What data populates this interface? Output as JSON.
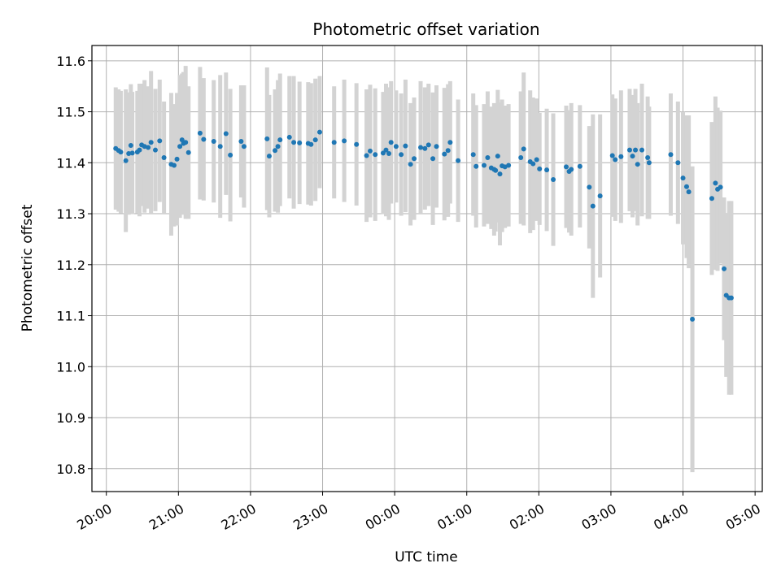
{
  "chart_data": {
    "type": "scatter",
    "title": "Photometric offset variation",
    "xlabel": "UTC time",
    "ylabel": "Photometric offset",
    "grid": true,
    "x_unit": "hours (UTC, beyond 24 = next day)",
    "xlim": [
      19.8,
      29.1
    ],
    "ylim": [
      10.755,
      11.63
    ],
    "x_ticks": [
      20,
      21,
      22,
      23,
      24,
      25,
      26,
      27,
      28,
      29
    ],
    "x_tick_labels": [
      "20:00",
      "21:00",
      "22:00",
      "23:00",
      "00:00",
      "01:00",
      "02:00",
      "03:00",
      "04:00",
      "05:00"
    ],
    "y_ticks": [
      10.8,
      10.9,
      11.0,
      11.1,
      11.2,
      11.3,
      11.4,
      11.5,
      11.6
    ],
    "y_tick_labels": [
      "10.8",
      "10.9",
      "11.0",
      "11.1",
      "11.2",
      "11.3",
      "11.4",
      "11.5",
      "11.6"
    ],
    "colors": {
      "points": "#1f77b4",
      "errorbars": "#d3d3d3",
      "grid": "#b0b0b0"
    },
    "series": [
      {
        "x": [
          20.13,
          20.17,
          20.2,
          20.27,
          20.31,
          20.34,
          20.36,
          20.43,
          20.46,
          20.49,
          20.53,
          20.58,
          20.62,
          20.68,
          20.74,
          20.8,
          20.9,
          20.94,
          20.98,
          21.02,
          21.05,
          21.07,
          21.1,
          21.14,
          21.3,
          21.35,
          21.49,
          21.58,
          21.66,
          21.72,
          21.87,
          21.91,
          22.23,
          22.26,
          22.34,
          22.38,
          22.41,
          22.54,
          22.6,
          22.68,
          22.8,
          22.84,
          22.9,
          22.96,
          23.16,
          23.3,
          23.47,
          23.61,
          23.66,
          23.73,
          23.84,
          23.88,
          23.92,
          23.95,
          24.02,
          24.09,
          24.15,
          24.22,
          24.27,
          24.36,
          24.42,
          24.47,
          24.53,
          24.58,
          24.69,
          24.74,
          24.77,
          24.88,
          25.09,
          25.13,
          25.24,
          25.29,
          25.34,
          25.38,
          25.4,
          25.43,
          25.46,
          25.49,
          25.53,
          25.58,
          25.75,
          25.79,
          25.88,
          25.92,
          25.97,
          26.01,
          26.11,
          26.2,
          26.38,
          26.42,
          26.45,
          26.57,
          26.7,
          26.75,
          26.85,
          27.02,
          27.06,
          27.14,
          27.26,
          27.3,
          27.34,
          27.37,
          27.43,
          27.51,
          27.53,
          27.83,
          27.93,
          28.0,
          28.05,
          28.08,
          28.13,
          28.4,
          28.45,
          28.48,
          28.52,
          28.57,
          28.6,
          28.64,
          28.67
        ],
        "y": [
          11.428,
          11.424,
          11.421,
          11.404,
          11.418,
          11.434,
          11.419,
          11.421,
          11.425,
          11.435,
          11.432,
          11.43,
          11.44,
          11.425,
          11.443,
          11.41,
          11.397,
          11.395,
          11.407,
          11.432,
          11.445,
          11.438,
          11.44,
          11.42,
          11.458,
          11.446,
          11.442,
          11.432,
          11.457,
          11.415,
          11.442,
          11.432,
          11.447,
          11.413,
          11.424,
          11.432,
          11.445,
          11.45,
          11.44,
          11.439,
          11.438,
          11.436,
          11.445,
          11.46,
          11.44,
          11.443,
          11.436,
          11.414,
          11.423,
          11.416,
          11.419,
          11.425,
          11.418,
          11.44,
          11.432,
          11.416,
          11.433,
          11.397,
          11.408,
          11.43,
          11.428,
          11.435,
          11.408,
          11.432,
          11.417,
          11.424,
          11.44,
          11.404,
          11.416,
          11.393,
          11.395,
          11.41,
          11.39,
          11.387,
          11.385,
          11.413,
          11.378,
          11.394,
          11.392,
          11.395,
          11.41,
          11.427,
          11.402,
          11.398,
          11.406,
          11.388,
          11.386,
          11.367,
          11.392,
          11.383,
          11.387,
          11.393,
          11.352,
          11.315,
          11.335,
          11.414,
          11.406,
          11.412,
          11.425,
          11.413,
          11.425,
          11.397,
          11.425,
          11.41,
          11.4,
          11.416,
          11.4,
          11.37,
          11.353,
          11.343,
          11.093,
          11.33,
          11.36,
          11.348,
          11.352,
          11.192,
          11.14,
          11.135,
          11.135
        ],
        "yerr": [
          0.12,
          0.12,
          0.12,
          0.14,
          0.12,
          0.12,
          0.12,
          0.12,
          0.13,
          0.12,
          0.13,
          0.12,
          0.14,
          0.12,
          0.12,
          0.11,
          0.14,
          0.12,
          0.13,
          0.14,
          0.13,
          0.14,
          0.15,
          0.13,
          0.13,
          0.12,
          0.12,
          0.14,
          0.12,
          0.13,
          0.11,
          0.12,
          0.14,
          0.12,
          0.12,
          0.13,
          0.13,
          0.12,
          0.13,
          0.12,
          0.12,
          0.12,
          0.12,
          0.11,
          0.11,
          0.12,
          0.12,
          0.13,
          0.13,
          0.13,
          0.12,
          0.13,
          0.13,
          0.12,
          0.11,
          0.12,
          0.13,
          0.12,
          0.12,
          0.13,
          0.12,
          0.12,
          0.13,
          0.12,
          0.13,
          0.13,
          0.12,
          0.12,
          0.12,
          0.12,
          0.12,
          0.13,
          0.12,
          0.13,
          0.12,
          0.13,
          0.14,
          0.13,
          0.12,
          0.12,
          0.13,
          0.15,
          0.14,
          0.13,
          0.12,
          0.11,
          0.12,
          0.13,
          0.12,
          0.12,
          0.13,
          0.12,
          0.12,
          0.18,
          0.16,
          0.12,
          0.12,
          0.13,
          0.12,
          0.12,
          0.12,
          0.12,
          0.13,
          0.12,
          0.11,
          0.12,
          0.12,
          0.13,
          0.14,
          0.15,
          0.3,
          0.15,
          0.17,
          0.16,
          0.15,
          0.14,
          0.16,
          0.19,
          0.19
        ]
      }
    ]
  }
}
